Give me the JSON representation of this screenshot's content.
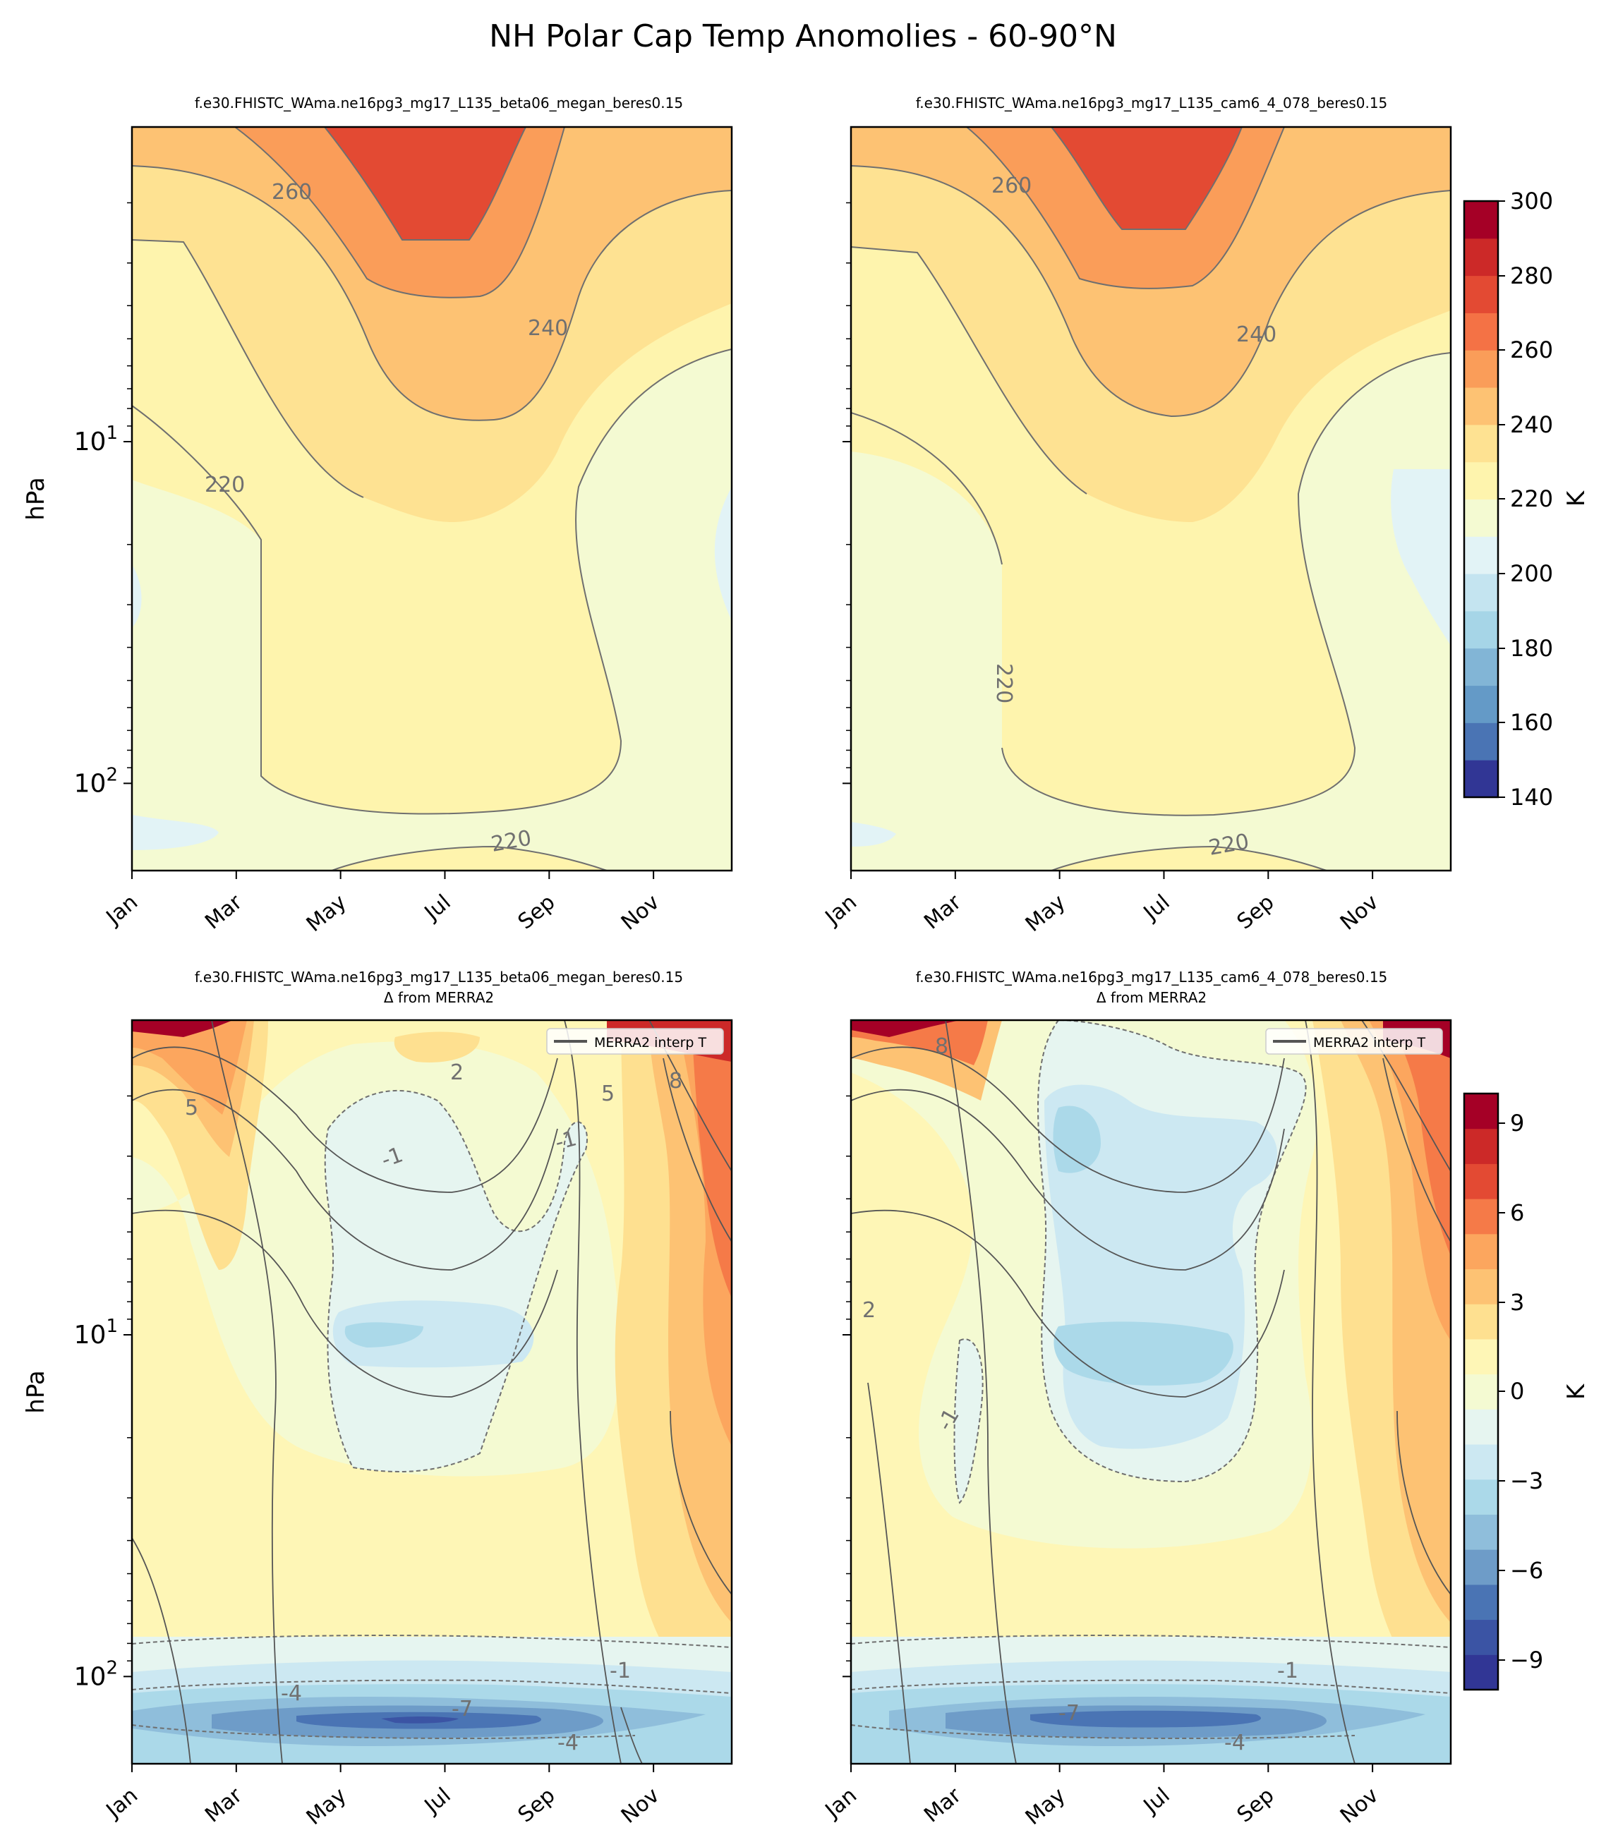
{
  "figure": {
    "suptitle": "NH Polar Cap Temp Anomolies - 60-90°N"
  },
  "panels": [
    {
      "title_line1": "f.e30.FHISTC_WAma.ne16pg3_mg17_L135_beta06_megan_beres0.15",
      "title_line2": "",
      "ylabel": "hPa",
      "contour_labels": [
        "260",
        "240",
        "220",
        "220"
      ]
    },
    {
      "title_line1": "f.e30.FHISTC_WAma.ne16pg3_mg17_L135_cam6_4_078_beres0.15",
      "title_line2": "",
      "ylabel": "",
      "contour_labels": [
        "260",
        "240",
        "220",
        "220"
      ]
    },
    {
      "title_line1": "f.e30.FHISTC_WAma.ne16pg3_mg17_L135_beta06_megan_beres0.15",
      "title_line2": "Δ from MERRA2",
      "ylabel": "hPa",
      "legend_label": "MERRA2 interp T",
      "contour_labels": [
        "5",
        "2",
        "-1",
        "-1",
        "5",
        "8",
        "-4",
        "-7",
        "-4",
        "-1"
      ]
    },
    {
      "title_line1": "f.e30.FHISTC_WAma.ne16pg3_mg17_L135_cam6_4_078_beres0.15",
      "title_line2": "Δ from MERRA2",
      "ylabel": "",
      "legend_label": "MERRA2 interp T",
      "contour_labels": [
        "8",
        "2",
        "-1",
        "-7",
        "-4",
        "-1"
      ]
    }
  ],
  "colorbars": [
    {
      "label": "K",
      "ticks": [
        "140",
        "160",
        "180",
        "200",
        "220",
        "240",
        "260",
        "280",
        "300"
      ]
    },
    {
      "label": "K",
      "ticks": [
        "−9",
        "−6",
        "−3",
        "0",
        "3",
        "6",
        "9"
      ]
    }
  ],
  "colors": {
    "temperature_levels": [
      "#313695",
      "#4a74b4",
      "#649ac7",
      "#82b5d6",
      "#a6d5e7",
      "#c4e4f0",
      "#e2f3f6",
      "#f4fad2",
      "#fef4ad",
      "#fee292",
      "#fdc273",
      "#fa9d59",
      "#f47245",
      "#e34a33",
      "#cc2928",
      "#a50026"
    ],
    "anomaly_levels": [
      "#313695",
      "#3b54a4",
      "#4a74b4",
      "#6e9cc8",
      "#8fbedb",
      "#abd9e9",
      "#cce8f2",
      "#e6f5f0",
      "#f4fad2",
      "#fef6b6",
      "#fee090",
      "#fdc273",
      "#fca65e",
      "#f57a48",
      "#e34a33",
      "#cc2928",
      "#a50026"
    ]
  },
  "chart_data": [
    {
      "type": "heatmap",
      "panel": "top-left",
      "title": "f.e30.FHISTC_WAma.ne16pg3_mg17_L135_beta06_megan_beres0.15",
      "xlabel": "",
      "ylabel": "hPa",
      "x_ticks": [
        "Jan",
        "Mar",
        "May",
        "Jul",
        "Sep",
        "Nov"
      ],
      "y_scale": "log",
      "y_inverted": true,
      "y_ticks": [
        "10^1",
        "10^2"
      ],
      "ylim": [
        1.2,
        180
      ],
      "contour_levels_K": [
        140,
        150,
        160,
        170,
        180,
        190,
        200,
        210,
        220,
        230,
        240,
        250,
        260,
        270,
        280,
        290,
        300
      ],
      "max_region": {
        "month": "Jun",
        "pressure_hPa": "1-3",
        "value_K": 270
      },
      "min_region": {
        "month": "Jan/Nov",
        "pressure_hPa": "20-40",
        "value_K": 205
      }
    },
    {
      "type": "heatmap",
      "panel": "top-right",
      "title": "f.e30.FHISTC_WAma.ne16pg3_mg17_L135_cam6_4_078_beres0.15",
      "xlabel": "",
      "ylabel": "",
      "x_ticks": [
        "Jan",
        "Mar",
        "May",
        "Jul",
        "Sep",
        "Nov"
      ],
      "y_scale": "log",
      "y_inverted": true,
      "ylim": [
        1.2,
        180
      ],
      "colorbar": {
        "label": "K",
        "range": [
          140,
          300
        ],
        "ticks": [
          140,
          160,
          180,
          200,
          220,
          240,
          260,
          280,
          300
        ]
      }
    },
    {
      "type": "heatmap",
      "panel": "bottom-left",
      "title": "f.e30.FHISTC_WAma.ne16pg3_mg17_L135_beta06_megan_beres0.15 Δ from MERRA2",
      "xlabel": "",
      "ylabel": "hPa",
      "x_ticks": [
        "Jan",
        "Mar",
        "May",
        "Jul",
        "Sep",
        "Nov"
      ],
      "y_scale": "log",
      "y_inverted": true,
      "ylim": [
        1.2,
        180
      ],
      "legend": [
        "MERRA2 interp T"
      ],
      "legend_position": "top-right",
      "max_anomaly_K": 9,
      "min_anomaly_K": -7
    },
    {
      "type": "heatmap",
      "panel": "bottom-right",
      "title": "f.e30.FHISTC_WAma.ne16pg3_mg17_L135_cam6_4_078_beres0.15 Δ from MERRA2",
      "xlabel": "",
      "ylabel": "",
      "x_ticks": [
        "Jan",
        "Mar",
        "May",
        "Jul",
        "Sep",
        "Nov"
      ],
      "y_scale": "log",
      "y_inverted": true,
      "ylim": [
        1.2,
        180
      ],
      "legend": [
        "MERRA2 interp T"
      ],
      "legend_position": "top-right",
      "colorbar": {
        "label": "K",
        "range": [
          -10,
          10
        ],
        "ticks": [
          -9,
          -6,
          -3,
          0,
          3,
          6,
          9
        ]
      }
    }
  ]
}
